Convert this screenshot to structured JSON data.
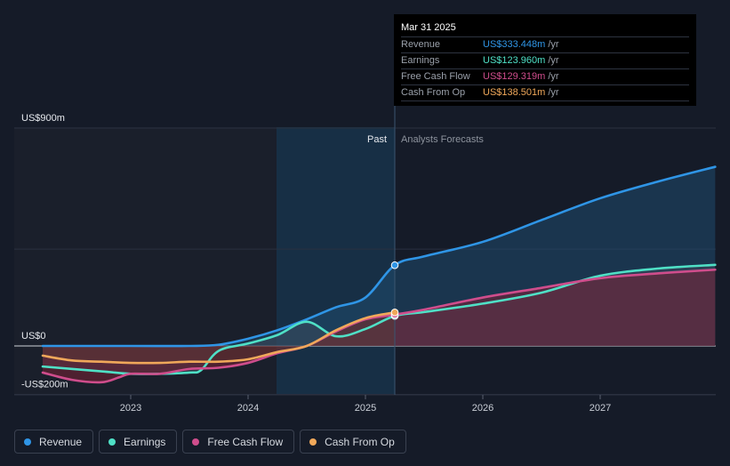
{
  "tooltip": {
    "date": "Mar 31 2025",
    "rows": [
      {
        "label": "Revenue",
        "value": "US$333.448m",
        "unit": "/yr",
        "color": "#2f95e6"
      },
      {
        "label": "Earnings",
        "value": "US$123.960m",
        "unit": "/yr",
        "color": "#4fe0c6"
      },
      {
        "label": "Free Cash Flow",
        "value": "US$129.319m",
        "unit": "/yr",
        "color": "#cf4d8c"
      },
      {
        "label": "Cash From Op",
        "value": "US$138.501m",
        "unit": "/yr",
        "color": "#f0a85a"
      }
    ]
  },
  "legend": [
    {
      "label": "Revenue",
      "color": "#2f95e6"
    },
    {
      "label": "Earnings",
      "color": "#4fe0c6"
    },
    {
      "label": "Free Cash Flow",
      "color": "#cf4d8c"
    },
    {
      "label": "Cash From Op",
      "color": "#f0a85a"
    }
  ],
  "chart_data": {
    "type": "line",
    "y_labels": [
      "US$900m",
      "US$0",
      "-US$200m"
    ],
    "x_ticks": [
      "2023",
      "2024",
      "2025",
      "2026",
      "2027"
    ],
    "ylim": [
      -250,
      1000
    ],
    "past_label": "Past",
    "forecast_label": "Analysts Forecasts",
    "divider_date": 2025.25,
    "series": [
      {
        "name": "Revenue",
        "color": "#2f95e6",
        "points": [
          [
            2022.25,
            0
          ],
          [
            2023.0,
            0
          ],
          [
            2023.5,
            0
          ],
          [
            2023.75,
            5
          ],
          [
            2024.0,
            30
          ],
          [
            2024.25,
            65
          ],
          [
            2024.5,
            110
          ],
          [
            2024.75,
            160
          ],
          [
            2025.0,
            200
          ],
          [
            2025.25,
            333.448
          ],
          [
            2025.5,
            370
          ],
          [
            2026.0,
            430
          ],
          [
            2026.5,
            520
          ],
          [
            2027.0,
            610
          ],
          [
            2027.5,
            680
          ],
          [
            2027.98,
            740
          ]
        ]
      },
      {
        "name": "Earnings",
        "color": "#4fe0c6",
        "points": [
          [
            2022.25,
            -85
          ],
          [
            2022.75,
            -105
          ],
          [
            2023.0,
            -115
          ],
          [
            2023.25,
            -115
          ],
          [
            2023.5,
            -110
          ],
          [
            2023.6,
            -100
          ],
          [
            2023.75,
            -20
          ],
          [
            2024.0,
            10
          ],
          [
            2024.25,
            45
          ],
          [
            2024.5,
            100
          ],
          [
            2024.75,
            40
          ],
          [
            2025.0,
            70
          ],
          [
            2025.25,
            123.96
          ],
          [
            2025.5,
            140
          ],
          [
            2026.0,
            175
          ],
          [
            2026.5,
            220
          ],
          [
            2027.0,
            290
          ],
          [
            2027.5,
            320
          ],
          [
            2027.98,
            335
          ]
        ]
      },
      {
        "name": "Free Cash Flow",
        "color": "#cf4d8c",
        "points": [
          [
            2022.25,
            -110
          ],
          [
            2022.5,
            -140
          ],
          [
            2022.75,
            -150
          ],
          [
            2022.9,
            -130
          ],
          [
            2023.0,
            -115
          ],
          [
            2023.25,
            -115
          ],
          [
            2023.5,
            -95
          ],
          [
            2023.75,
            -90
          ],
          [
            2024.0,
            -70
          ],
          [
            2024.25,
            -30
          ],
          [
            2024.5,
            0
          ],
          [
            2024.75,
            60
          ],
          [
            2025.0,
            110
          ],
          [
            2025.25,
            129.319
          ],
          [
            2025.5,
            150
          ],
          [
            2026.0,
            200
          ],
          [
            2026.5,
            240
          ],
          [
            2027.0,
            280
          ],
          [
            2027.5,
            300
          ],
          [
            2027.98,
            315
          ]
        ]
      },
      {
        "name": "Cash From Op",
        "color": "#f0a85a",
        "points": [
          [
            2022.25,
            -40
          ],
          [
            2022.5,
            -60
          ],
          [
            2022.75,
            -65
          ],
          [
            2023.0,
            -70
          ],
          [
            2023.25,
            -70
          ],
          [
            2023.5,
            -65
          ],
          [
            2023.75,
            -65
          ],
          [
            2024.0,
            -55
          ],
          [
            2024.25,
            -25
          ],
          [
            2024.5,
            0
          ],
          [
            2024.75,
            65
          ],
          [
            2025.0,
            115
          ],
          [
            2025.25,
            138.501
          ]
        ]
      }
    ]
  }
}
